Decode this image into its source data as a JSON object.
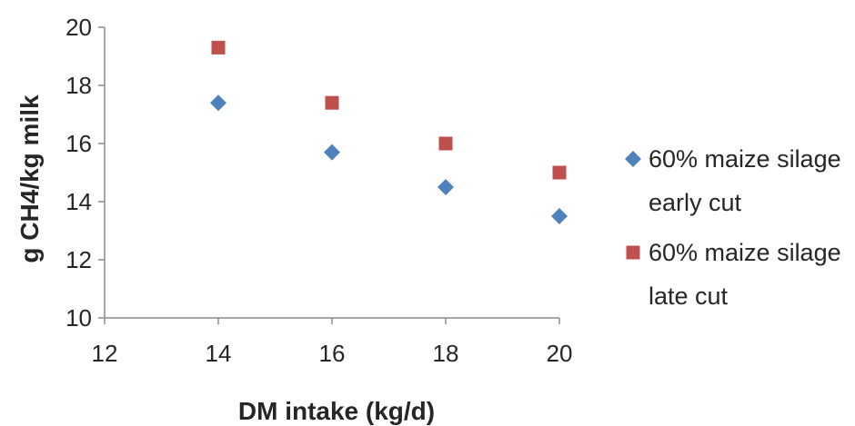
{
  "chart_data": {
    "type": "scatter",
    "title": "",
    "xlabel": "DM intake (kg/d)",
    "ylabel": "g CH4/kg milk",
    "xlim": [
      12,
      20
    ],
    "ylim": [
      10,
      20
    ],
    "xticks": [
      12,
      14,
      16,
      18,
      20
    ],
    "yticks": [
      10,
      12,
      14,
      16,
      18,
      20
    ],
    "grid": false,
    "legend": "right",
    "series": [
      {
        "name": "60% maize silage early cut",
        "legend_lines": [
          "60% maize silage",
          "early cut"
        ],
        "marker": "diamond",
        "color": "#4f81bd",
        "x": [
          14,
          16,
          18,
          20
        ],
        "y": [
          17.4,
          15.7,
          14.5,
          13.5
        ]
      },
      {
        "name": "60% maize silage late cut",
        "legend_lines": [
          "60% maize silage",
          "late cut"
        ],
        "marker": "square",
        "color": "#c0504d",
        "x": [
          14,
          16,
          18,
          20
        ],
        "y": [
          19.3,
          17.4,
          16.0,
          15.0
        ]
      }
    ]
  }
}
